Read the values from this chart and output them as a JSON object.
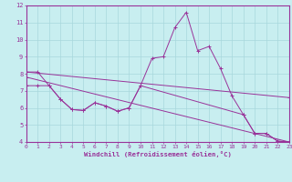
{
  "xlabel": "Windchill (Refroidissement éolien,°C)",
  "bg_color": "#c8eef0",
  "grid_color": "#a8d8dc",
  "line_color": "#993399",
  "xmin": 0,
  "xmax": 23,
  "ymin": 4,
  "ymax": 12,
  "yticks": [
    4,
    5,
    6,
    7,
    8,
    9,
    10,
    11,
    12
  ],
  "xticks": [
    0,
    1,
    2,
    3,
    4,
    5,
    6,
    7,
    8,
    9,
    10,
    11,
    12,
    13,
    14,
    15,
    16,
    17,
    18,
    19,
    20,
    21,
    22,
    23
  ],
  "series": [
    {
      "x": [
        0,
        23
      ],
      "y": [
        8.1,
        6.6
      ]
    },
    {
      "x": [
        0,
        23
      ],
      "y": [
        7.8,
        4.0
      ]
    },
    {
      "x": [
        0,
        1,
        2,
        3,
        4,
        5,
        6,
        7,
        8,
        9,
        10,
        11,
        12,
        13,
        14,
        15,
        16,
        17,
        18,
        19,
        20,
        21,
        22,
        23
      ],
      "y": [
        8.1,
        8.1,
        7.3,
        6.5,
        5.9,
        5.85,
        6.3,
        6.1,
        5.8,
        6.0,
        7.3,
        8.9,
        9.0,
        10.7,
        11.6,
        9.35,
        9.6,
        8.3,
        6.7,
        5.6,
        4.5,
        4.5,
        4.05,
        4.0
      ]
    },
    {
      "x": [
        0,
        1,
        2,
        3,
        4,
        5,
        6,
        7,
        8,
        9,
        10,
        19,
        20,
        21,
        22,
        23
      ],
      "y": [
        7.3,
        7.3,
        7.3,
        6.5,
        5.9,
        5.85,
        6.3,
        6.1,
        5.8,
        6.0,
        7.3,
        5.6,
        4.5,
        4.5,
        4.05,
        4.0
      ]
    }
  ]
}
